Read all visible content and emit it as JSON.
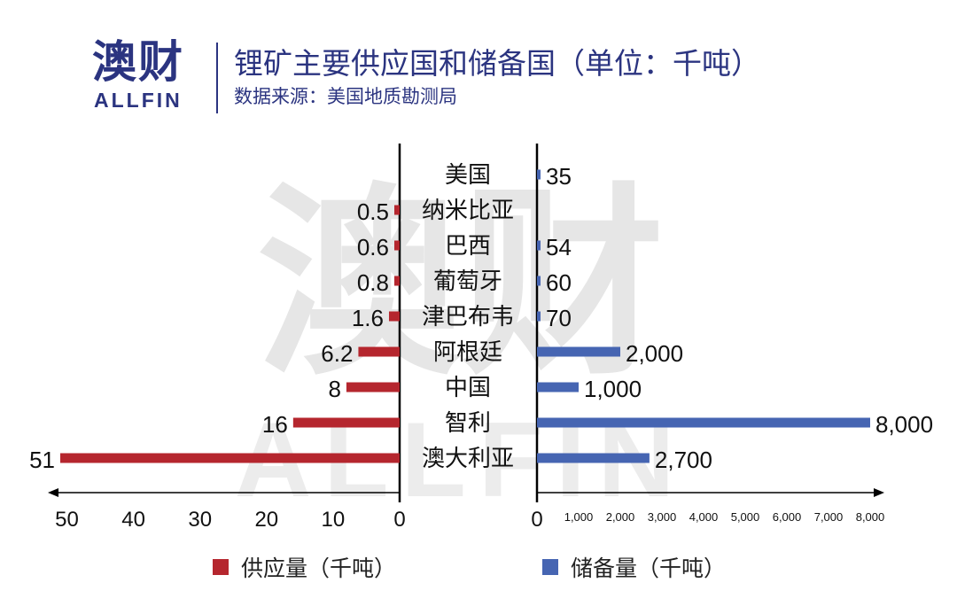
{
  "header": {
    "logo_cn": "澳财",
    "logo_en": "ALLFIN",
    "title": "锂矿主要供应国和储备国（单位：千吨）",
    "subtitle": "数据来源：美国地质勘测局"
  },
  "watermark": {
    "cn": "澳财",
    "en": "ALLFIN"
  },
  "colors": {
    "supply": "#b5262e",
    "reserve": "#4665b2",
    "title": "#2b3480"
  },
  "chart_data": {
    "type": "bar",
    "orientation": "horizontal",
    "layout": "butterfly",
    "categories": [
      "美国",
      "纳米比亚",
      "巴西",
      "葡萄牙",
      "津巴布韦",
      "阿根廷",
      "中国",
      "智利",
      "澳大利亚"
    ],
    "series": [
      {
        "name": "供应量（千吨）",
        "values": [
          null,
          0.5,
          0.6,
          0.8,
          1.6,
          6.2,
          8,
          16,
          51
        ],
        "labels": [
          "",
          "0.5",
          "0.6",
          "0.8",
          "1.6",
          "6.2",
          "8",
          "16",
          "51"
        ],
        "xlim": [
          0,
          51
        ],
        "ticks": [
          "50",
          "40",
          "30",
          "20",
          "10",
          "0"
        ],
        "tick_values": [
          50,
          40,
          30,
          20,
          10,
          0
        ]
      },
      {
        "name": "储备量（千吨）",
        "values": [
          35,
          null,
          54,
          60,
          70,
          2000,
          1000,
          8000,
          2700
        ],
        "labels": [
          "35",
          "",
          "54",
          "60",
          "70",
          "2,000",
          "1,000",
          "8,000",
          "2,700"
        ],
        "xlim": [
          0,
          8000
        ],
        "ticks": [
          "0",
          "1,000",
          "2,000",
          "3,000",
          "4,000",
          "5,000",
          "6,000",
          "7,000",
          "8,000"
        ],
        "tick_values": [
          0,
          1000,
          2000,
          3000,
          4000,
          5000,
          6000,
          7000,
          8000
        ]
      }
    ],
    "legend_position": "bottom"
  }
}
